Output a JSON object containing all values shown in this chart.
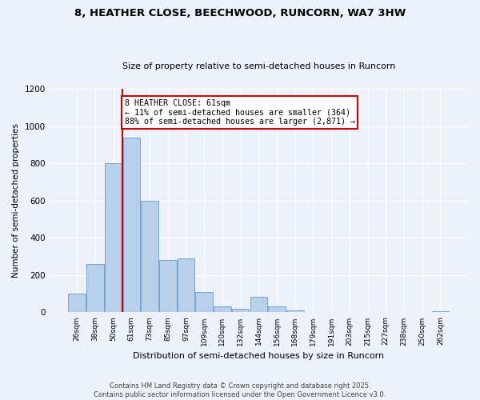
{
  "title": "8, HEATHER CLOSE, BEECHWOOD, RUNCORN, WA7 3HW",
  "subtitle": "Size of property relative to semi-detached houses in Runcorn",
  "xlabel": "Distribution of semi-detached houses by size in Runcorn",
  "ylabel": "Number of semi-detached properties",
  "bins": [
    "26sqm",
    "38sqm",
    "50sqm",
    "61sqm",
    "73sqm",
    "85sqm",
    "97sqm",
    "109sqm",
    "120sqm",
    "132sqm",
    "144sqm",
    "156sqm",
    "168sqm",
    "179sqm",
    "191sqm",
    "203sqm",
    "215sqm",
    "227sqm",
    "238sqm",
    "250sqm",
    "262sqm"
  ],
  "values": [
    100,
    260,
    800,
    940,
    600,
    280,
    290,
    110,
    30,
    20,
    85,
    30,
    10,
    3,
    2,
    2,
    1,
    1,
    1,
    1,
    5
  ],
  "bar_color": "#b8d0ea",
  "bar_edge_color": "#6699cc",
  "property_line_bin": 2,
  "annotation_text": "8 HEATHER CLOSE: 61sqm\n← 11% of semi-detached houses are smaller (364)\n88% of semi-detached houses are larger (2,871) →",
  "footer_line1": "Contains HM Land Registry data © Crown copyright and database right 2025.",
  "footer_line2": "Contains public sector information licensed under the Open Government Licence v3.0.",
  "background_color": "#edf1f9",
  "plot_bg_color": "#edf1f9",
  "ylim": [
    0,
    1200
  ],
  "yticks": [
    0,
    200,
    400,
    600,
    800,
    1000,
    1200
  ],
  "grid_color": "#ffffff",
  "red_line_color": "#cc0000",
  "annotation_box_color": "#ffffff",
  "annotation_border_color": "#cc0000"
}
